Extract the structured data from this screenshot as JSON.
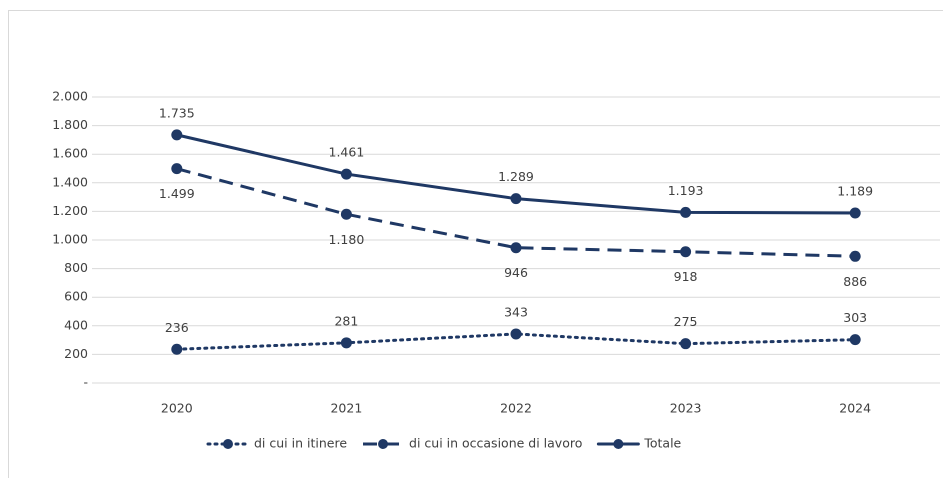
{
  "chart_data": {
    "type": "line",
    "categories": [
      "2020",
      "2021",
      "2022",
      "2023",
      "2024"
    ],
    "series": [
      {
        "name": "di cui in itinere",
        "color": "#1f3864",
        "line_style": "dotted",
        "label_position": "above",
        "values": [
          236,
          281,
          343,
          275,
          303
        ]
      },
      {
        "name": "di cui in occasione di lavoro",
        "color": "#1f3864",
        "line_style": "dashed",
        "label_position": "below",
        "values": [
          1499,
          1180,
          946,
          918,
          886
        ],
        "value_labels": [
          "1.499",
          "1.180",
          "946",
          "918",
          "886"
        ]
      },
      {
        "name": "Totale",
        "color": "#1f3864",
        "line_style": "solid",
        "label_position": "above",
        "values": [
          1735,
          1461,
          1289,
          1193,
          1189
        ],
        "value_labels": [
          "1.735",
          "1.461",
          "1.289",
          "1.193",
          "1.189"
        ]
      }
    ],
    "ylim": [
      0,
      2000
    ],
    "yticks": [
      {
        "value": 0,
        "label": "-"
      },
      200,
      400,
      600,
      800,
      {
        "value": 1000,
        "label": "1.000"
      },
      {
        "value": 1200,
        "label": "1.200"
      },
      {
        "value": 1400,
        "label": "1.400"
      },
      {
        "value": 1600,
        "label": "1.600"
      },
      {
        "value": 1800,
        "label": "1.800"
      },
      {
        "value": 2000,
        "label": "2.000"
      }
    ],
    "grid": true,
    "legend": "bottom"
  }
}
